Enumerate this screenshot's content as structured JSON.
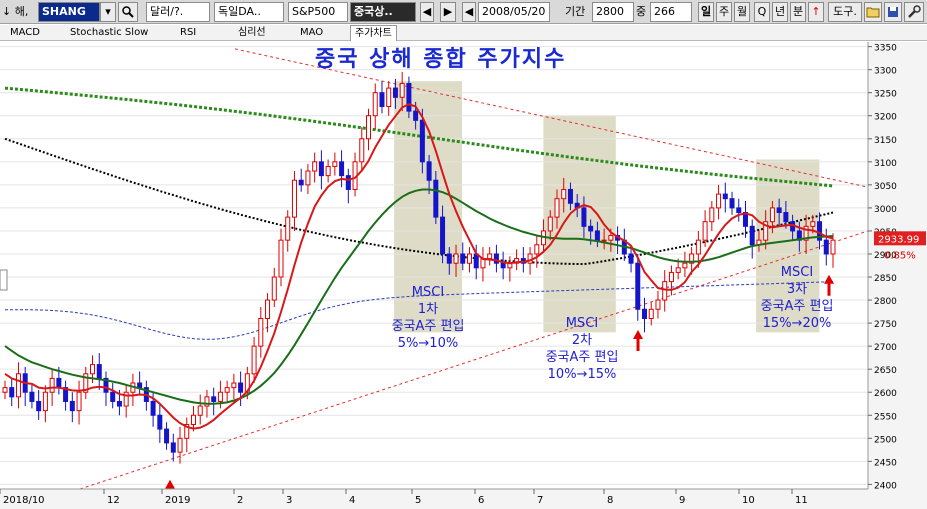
{
  "toolbar": {
    "scroll_prefix": "↓ 해,",
    "symbol": "SHANG",
    "search_icon": "search-icon",
    "currency": "달러/?.",
    "source": "독일DA..",
    "index": "S&P500",
    "chart_name": "중국상..",
    "nav_prev": "◀",
    "play": "▶",
    "nav_next": "◀",
    "date": "2008/05/20",
    "period_label": "기간",
    "period": "2800",
    "count_label": "중",
    "count": "266",
    "interval_day": "일",
    "interval_week": "주",
    "interval_month": "월",
    "interval_quarter": "Q",
    "interval_year": "년",
    "interval_minute": "분",
    "interval_extra": "↑",
    "tools": "도구.",
    "open_icon": "folder-icon",
    "save_icon": "save-icon",
    "settings_icon": "wrench-icon"
  },
  "tabs": [
    "MACD",
    "Stochastic Slow",
    "RSI",
    "심리선",
    "MAO",
    "주가차트"
  ],
  "chart_data": {
    "type": "line",
    "title": "중국 상해 종합 주가지수",
    "xlabel": "",
    "ylabel": "",
    "x_ticks": [
      "2018/10",
      "12",
      "2019",
      "2",
      "3",
      "4",
      "5",
      "6",
      "7",
      "8",
      "9",
      "10",
      "11"
    ],
    "ylim": [
      2390,
      3360
    ],
    "y_ticks": [
      2400,
      2450,
      2500,
      2550,
      2600,
      2650,
      2700,
      2750,
      2800,
      2850,
      2900,
      2950,
      3000,
      3050,
      3100,
      3150,
      3200,
      3250,
      3300,
      3350
    ],
    "last_price": "2933.99",
    "last_change": "0.85%",
    "colors": {
      "up": "#e00000",
      "down": "#1414c8",
      "ma_short": "#d81818",
      "ma_mid": "#1a6e1a",
      "ma_long_dashed": "#2a3ab8",
      "ma_dotted_black": "#000000",
      "ma_dotted_green": "#2a8a1a",
      "trend": "#e03030",
      "box": "#d8d6bc",
      "annotation": "#2020d0"
    },
    "series": [
      {
        "values": [
          2610,
          2590,
          2640,
          2600,
          2580,
          2560,
          2600,
          2630,
          2610,
          2580,
          2560,
          2600,
          2640,
          2660,
          2630,
          2600,
          2580,
          2570,
          2600,
          2620,
          2610,
          2580,
          2550,
          2520,
          2490,
          2470,
          2500,
          2530,
          2550,
          2570,
          2590,
          2580,
          2600,
          2610,
          2620,
          2600,
          2640,
          2700,
          2760,
          2800,
          2850,
          2930,
          2980,
          3060,
          3050,
          3080,
          3100,
          3070,
          3090,
          3100,
          3070,
          3040,
          3100,
          3150,
          3200,
          3250,
          3220,
          3260,
          3240,
          3270,
          3210,
          3190,
          3100,
          3060,
          2980,
          2900,
          2880,
          2900,
          2880,
          2900,
          2870,
          2890,
          2900,
          2880,
          2870,
          2880,
          2890,
          2880,
          2900,
          2920,
          2950,
          2980,
          3020,
          3040,
          3010,
          3000,
          2960,
          2950,
          2930,
          2930,
          2940,
          2930,
          2900,
          2880,
          2780,
          2760,
          2780,
          2800,
          2840,
          2860,
          2870,
          2880,
          2900,
          2930,
          2970,
          3000,
          3030,
          3020,
          3000,
          2990,
          2960,
          2920,
          2930,
          2970,
          3000,
          2990,
          2970,
          2950,
          2930,
          2960,
          2970,
          2930,
          2900,
          2930
        ]
      },
      {
        "values": [
          2640,
          2630,
          2625,
          2620,
          2618,
          2610,
          2608,
          2610,
          2610,
          2607,
          2604,
          2603,
          2605,
          2610,
          2612,
          2610,
          2604,
          2596,
          2593,
          2593,
          2595,
          2594,
          2587,
          2575,
          2560,
          2545,
          2533,
          2525,
          2521,
          2523,
          2530,
          2540,
          2553,
          2565,
          2577,
          2588,
          2602,
          2625,
          2655,
          2690,
          2728,
          2774,
          2823,
          2876,
          2925,
          2966,
          3003,
          3027,
          3046,
          3058,
          3063,
          3061,
          3065,
          3081,
          3102,
          3131,
          3156,
          3180,
          3199,
          3218,
          3225,
          3220,
          3197,
          3166,
          3124,
          3076,
          3030,
          2993,
          2959,
          2930,
          2901,
          2889,
          2888,
          2886,
          2882,
          2880,
          2882,
          2883,
          2886,
          2893,
          2905,
          2920,
          2942,
          2967,
          2988,
          3000,
          3006,
          3002,
          2986,
          2964,
          2947,
          2937,
          2929,
          2918,
          2892,
          2861,
          2843,
          2826,
          2823,
          2822,
          2827,
          2839,
          2861,
          2877,
          2898,
          2921,
          2944,
          2963,
          2977,
          2985,
          2988,
          2984,
          2970,
          2962,
          2958,
          2960,
          2962,
          2963,
          2957,
          2953,
          2951,
          2946,
          2937,
          2934
        ]
      },
      {
        "values": [
          2700,
          2690,
          2680,
          2672,
          2665,
          2660,
          2655,
          2650,
          2646,
          2642,
          2638,
          2635,
          2632,
          2630,
          2628,
          2626,
          2623,
          2620,
          2616,
          2612,
          2608,
          2604,
          2600,
          2596,
          2592,
          2588,
          2584,
          2581,
          2578,
          2576,
          2575,
          2575,
          2576,
          2578,
          2582,
          2587,
          2594,
          2603,
          2614,
          2627,
          2642,
          2660,
          2680,
          2702,
          2726,
          2750,
          2775,
          2800,
          2824,
          2848,
          2870,
          2890,
          2910,
          2930,
          2950,
          2968,
          2985,
          3000,
          3013,
          3024,
          3032,
          3037,
          3040,
          3040,
          3038,
          3034,
          3028,
          3020,
          3011,
          3002,
          2993,
          2985,
          2977,
          2970,
          2964,
          2958,
          2953,
          2948,
          2944,
          2940,
          2937,
          2935,
          2934,
          2933,
          2933,
          2933,
          2932,
          2930,
          2928,
          2925,
          2922,
          2919,
          2916,
          2913,
          2908,
          2903,
          2898,
          2893,
          2889,
          2886,
          2884,
          2883,
          2883,
          2884,
          2886,
          2889,
          2893,
          2898,
          2903,
          2908,
          2913,
          2917,
          2920,
          2922,
          2924,
          2926,
          2928,
          2930,
          2932,
          2934,
          2936,
          2937,
          2938,
          2939
        ]
      }
    ],
    "annotations": [
      {
        "lines": [
          "MSCI",
          "1차",
          "중국A주 편입",
          "5%→10%"
        ]
      },
      {
        "lines": [
          "MSCI",
          "2차",
          "중국A주 편입",
          "10%→15%"
        ]
      },
      {
        "lines": [
          "MSCI",
          "3차",
          "중국A주 편입",
          "15%→20%"
        ]
      }
    ]
  }
}
